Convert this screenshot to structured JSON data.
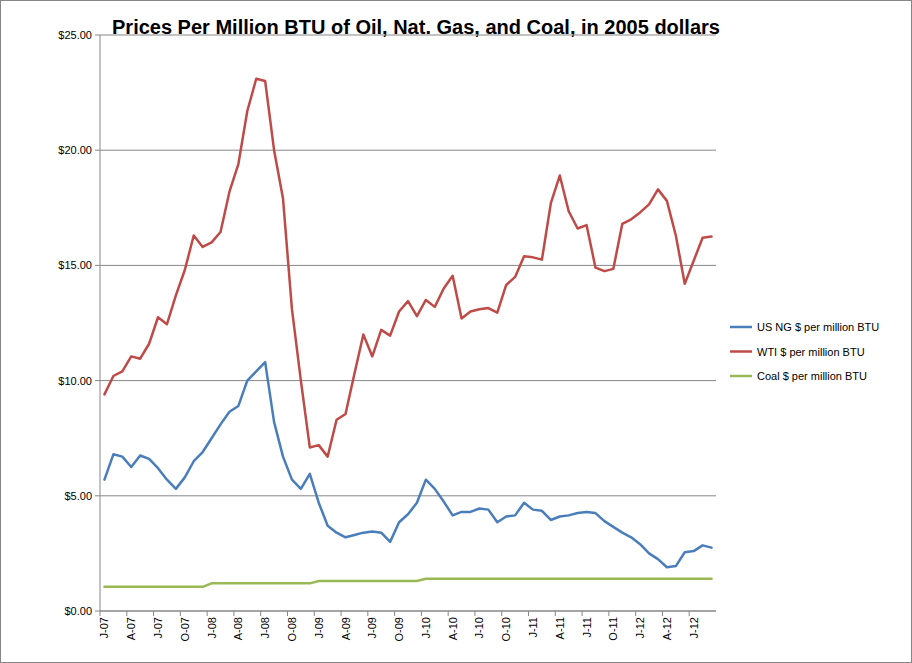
{
  "chart_data": {
    "type": "line",
    "title": "Prices Per Million BTU of Oil, Nat. Gas, and Coal, in 2005 dollars",
    "categories": [
      "J-07",
      null,
      null,
      "A-07",
      null,
      null,
      "J-07",
      null,
      null,
      "O-07",
      null,
      null,
      "J-08",
      null,
      null,
      "A-08",
      null,
      null,
      "J-08",
      null,
      null,
      "O-08",
      null,
      null,
      "J-09",
      null,
      null,
      "A-09",
      null,
      null,
      "J-09",
      null,
      null,
      "O-09",
      null,
      null,
      "J-10",
      null,
      null,
      "A-10",
      null,
      null,
      "J-10",
      null,
      null,
      "O-10",
      null,
      null,
      "J-11",
      null,
      null,
      "A-11",
      null,
      null,
      "J-11",
      null,
      null,
      "O-11",
      null,
      null,
      "J-12",
      null,
      null,
      "A-12",
      null,
      null,
      "J-12",
      null,
      null
    ],
    "series": [
      {
        "name": "US NG $ per million BTU",
        "color": "#4a7ebb",
        "values": [
          5.7,
          6.8,
          6.7,
          6.25,
          6.75,
          6.6,
          6.2,
          5.7,
          5.3,
          5.8,
          6.5,
          6.9,
          7.5,
          8.1,
          8.65,
          8.9,
          10.0,
          10.4,
          10.8,
          8.2,
          6.7,
          5.7,
          5.3,
          5.95,
          4.7,
          3.7,
          3.4,
          3.2,
          3.3,
          3.4,
          3.45,
          3.4,
          3.0,
          3.85,
          4.2,
          4.7,
          5.7,
          5.3,
          4.75,
          4.15,
          4.3,
          4.3,
          4.45,
          4.4,
          3.85,
          4.1,
          4.15,
          4.7,
          4.4,
          4.35,
          3.95,
          4.1,
          4.15,
          4.25,
          4.3,
          4.25,
          3.9,
          3.65,
          3.4,
          3.2,
          2.9,
          2.5,
          2.25,
          1.9,
          1.95,
          2.55,
          2.6,
          2.85,
          2.75
        ]
      },
      {
        "name": "WTI $ per million BTU",
        "color": "#be4b48",
        "values": [
          9.4,
          10.2,
          10.4,
          11.05,
          10.95,
          11.6,
          12.75,
          12.45,
          13.7,
          14.8,
          16.3,
          15.8,
          16.0,
          16.45,
          18.2,
          19.4,
          21.7,
          23.1,
          23.0,
          20.0,
          17.9,
          13.1,
          10.0,
          7.1,
          7.2,
          6.7,
          8.3,
          8.55,
          10.3,
          12.0,
          11.05,
          12.2,
          11.95,
          13.0,
          13.45,
          12.8,
          13.5,
          13.2,
          14.0,
          14.55,
          12.7,
          13.0,
          13.1,
          13.15,
          12.95,
          14.15,
          14.5,
          15.4,
          15.35,
          15.25,
          17.7,
          18.9,
          17.35,
          16.6,
          16.75,
          14.9,
          14.75,
          14.85,
          16.8,
          17.0,
          17.3,
          17.65,
          18.3,
          17.8,
          16.3,
          14.2,
          15.2,
          16.2,
          16.25
        ]
      },
      {
        "name": "Coal $ per million BTU",
        "color": "#98b954",
        "values": [
          1.05,
          1.05,
          1.05,
          1.05,
          1.05,
          1.05,
          1.05,
          1.05,
          1.05,
          1.05,
          1.05,
          1.05,
          1.2,
          1.2,
          1.2,
          1.2,
          1.2,
          1.2,
          1.2,
          1.2,
          1.2,
          1.2,
          1.2,
          1.2,
          1.3,
          1.3,
          1.3,
          1.3,
          1.3,
          1.3,
          1.3,
          1.3,
          1.3,
          1.3,
          1.3,
          1.3,
          1.4,
          1.4,
          1.4,
          1.4,
          1.4,
          1.4,
          1.4,
          1.4,
          1.4,
          1.4,
          1.4,
          1.4,
          1.4,
          1.4,
          1.4,
          1.4,
          1.4,
          1.4,
          1.4,
          1.4,
          1.4,
          1.4,
          1.4,
          1.4,
          1.4,
          1.4,
          1.4,
          1.4,
          1.4,
          1.4,
          1.4,
          1.4,
          1.4
        ]
      }
    ],
    "ylim": [
      0,
      25
    ],
    "yticks": [
      {
        "value": 0,
        "label": "$0.00"
      },
      {
        "value": 5,
        "label": "$5.00"
      },
      {
        "value": 10,
        "label": "$10.00"
      },
      {
        "value": 15,
        "label": "$15.00"
      },
      {
        "value": 20,
        "label": "$20.00"
      },
      {
        "value": 25,
        "label": "$25.00"
      }
    ],
    "grid": true,
    "legend": "right"
  }
}
